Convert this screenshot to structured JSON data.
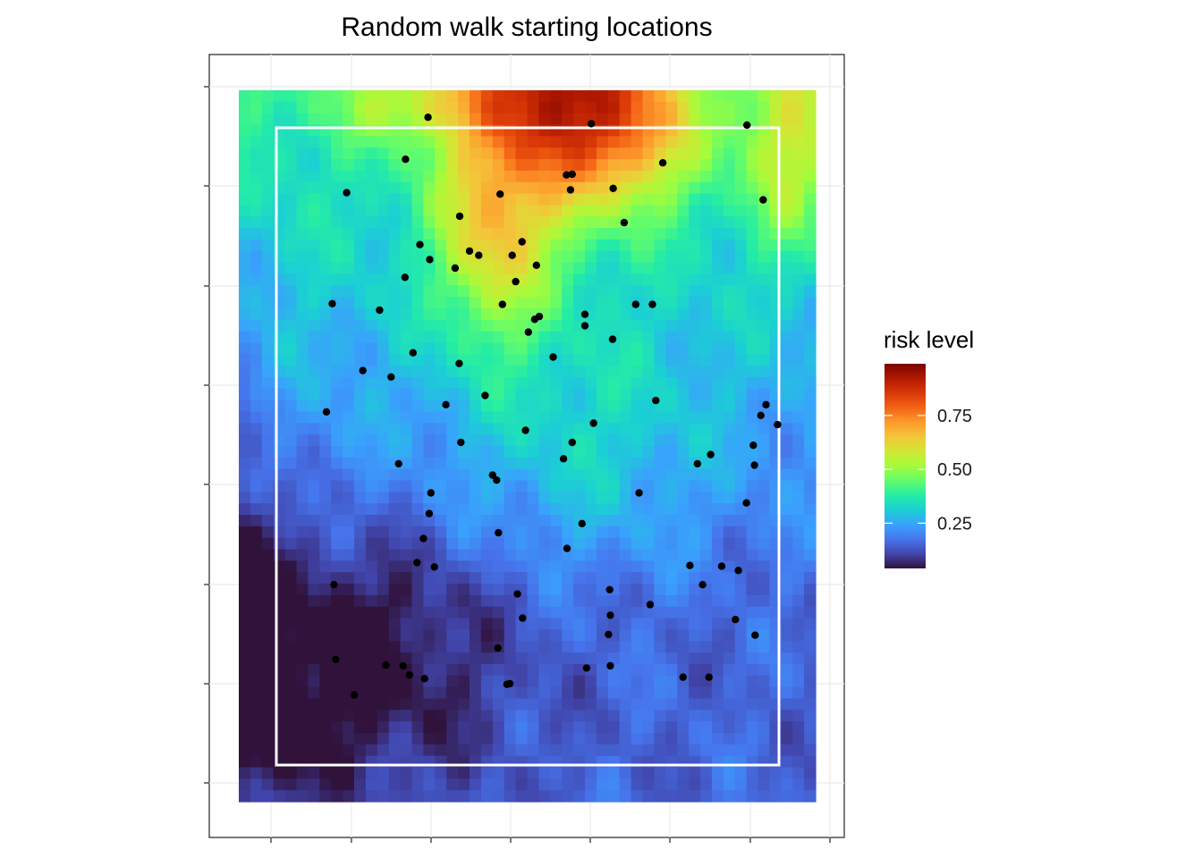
{
  "chart_data": {
    "type": "scatter",
    "title": "Random walk starting locations",
    "subtitle": "",
    "xlabel": "",
    "ylabel": "",
    "raster": {
      "cols": 50,
      "rows": 62,
      "colormap": "turbo-like (dark purple → blue → cyan → green → yellow → orange → dark red)",
      "description_values": "risk level surface; high values along the top centre, low values in the lower-left basin"
    },
    "study_area": {
      "outline_color": "#ffffff"
    },
    "points": {
      "color": "#000000",
      "xy": [
        [
          0.328,
          0.962
        ],
        [
          0.611,
          0.953
        ],
        [
          0.881,
          0.951
        ],
        [
          0.289,
          0.903
        ],
        [
          0.735,
          0.898
        ],
        [
          0.578,
          0.882
        ],
        [
          0.568,
          0.881
        ],
        [
          0.649,
          0.862
        ],
        [
          0.575,
          0.86
        ],
        [
          0.187,
          0.856
        ],
        [
          0.453,
          0.854
        ],
        [
          0.909,
          0.846
        ],
        [
          0.383,
          0.823
        ],
        [
          0.668,
          0.814
        ],
        [
          0.491,
          0.787
        ],
        [
          0.314,
          0.783
        ],
        [
          0.4,
          0.774
        ],
        [
          0.474,
          0.768
        ],
        [
          0.416,
          0.768
        ],
        [
          0.331,
          0.762
        ],
        [
          0.516,
          0.754
        ],
        [
          0.375,
          0.75
        ],
        [
          0.288,
          0.737
        ],
        [
          0.48,
          0.731
        ],
        [
          0.457,
          0.699
        ],
        [
          0.717,
          0.699
        ],
        [
          0.688,
          0.699
        ],
        [
          0.244,
          0.691
        ],
        [
          0.162,
          0.7
        ],
        [
          0.521,
          0.682
        ],
        [
          0.513,
          0.678
        ],
        [
          0.6,
          0.669
        ],
        [
          0.6,
          0.685
        ],
        [
          0.502,
          0.66
        ],
        [
          0.648,
          0.65
        ],
        [
          0.302,
          0.631
        ],
        [
          0.545,
          0.625
        ],
        [
          0.382,
          0.616
        ],
        [
          0.215,
          0.606
        ],
        [
          0.264,
          0.597
        ],
        [
          0.427,
          0.571
        ],
        [
          0.723,
          0.564
        ],
        [
          0.359,
          0.558
        ],
        [
          0.914,
          0.558
        ],
        [
          0.905,
          0.543
        ],
        [
          0.152,
          0.548
        ],
        [
          0.615,
          0.532
        ],
        [
          0.934,
          0.53
        ],
        [
          0.497,
          0.522
        ],
        [
          0.385,
          0.505
        ],
        [
          0.578,
          0.505
        ],
        [
          0.563,
          0.482
        ],
        [
          0.892,
          0.501
        ],
        [
          0.818,
          0.488
        ],
        [
          0.795,
          0.475
        ],
        [
          0.277,
          0.475
        ],
        [
          0.894,
          0.473
        ],
        [
          0.44,
          0.459
        ],
        [
          0.447,
          0.452
        ],
        [
          0.333,
          0.434
        ],
        [
          0.694,
          0.434
        ],
        [
          0.88,
          0.42
        ],
        [
          0.33,
          0.405
        ],
        [
          0.595,
          0.391
        ],
        [
          0.45,
          0.378
        ],
        [
          0.32,
          0.37
        ],
        [
          0.569,
          0.356
        ],
        [
          0.309,
          0.336
        ],
        [
          0.339,
          0.33
        ],
        [
          0.782,
          0.332
        ],
        [
          0.837,
          0.331
        ],
        [
          0.165,
          0.305
        ],
        [
          0.866,
          0.325
        ],
        [
          0.804,
          0.305
        ],
        [
          0.643,
          0.298
        ],
        [
          0.483,
          0.292
        ],
        [
          0.713,
          0.277
        ],
        [
          0.492,
          0.258
        ],
        [
          0.644,
          0.262
        ],
        [
          0.861,
          0.256
        ],
        [
          0.641,
          0.235
        ],
        [
          0.895,
          0.234
        ],
        [
          0.449,
          0.216
        ],
        [
          0.168,
          0.2
        ],
        [
          0.255,
          0.192
        ],
        [
          0.285,
          0.191
        ],
        [
          0.644,
          0.191
        ],
        [
          0.603,
          0.188
        ],
        [
          0.296,
          0.178
        ],
        [
          0.322,
          0.173
        ],
        [
          0.47,
          0.166
        ],
        [
          0.77,
          0.175
        ],
        [
          0.815,
          0.175
        ],
        [
          0.465,
          0.165
        ],
        [
          0.2,
          0.15
        ]
      ]
    },
    "legend": {
      "title": "risk level",
      "placement": "right",
      "ticks": [
        "0.75",
        "0.50",
        "0.25"
      ],
      "tick_values": [
        0.75,
        0.5,
        0.25
      ],
      "range": [
        0.04,
        0.99
      ],
      "gradient_stops": [
        "#30123b",
        "#4145ab",
        "#4675ed",
        "#39a2fc",
        "#1bcfd4",
        "#24eca6",
        "#61fc6c",
        "#a4fc3b",
        "#d1e834",
        "#f3c63a",
        "#fe9b2d",
        "#f36315",
        "#d93806",
        "#b11901",
        "#7a0403"
      ]
    },
    "grid": true,
    "axis_tick_labels": "none"
  }
}
